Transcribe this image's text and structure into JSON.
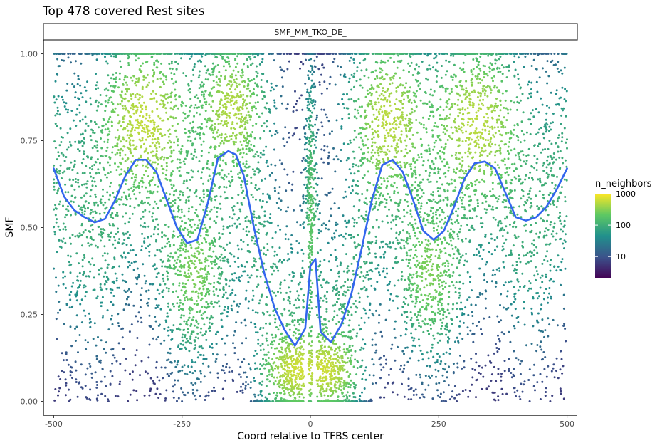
{
  "chart_data": {
    "type": "scatter",
    "title": "Top 478 covered Rest sites",
    "facet_label": "SMF_MM_TKO_DE_",
    "xlabel": "Coord relative to TFBS center",
    "ylabel": "SMF",
    "xlim": [
      -520,
      520
    ],
    "ylim": [
      -0.04,
      1.04
    ],
    "x_ticks": [
      -500,
      -250,
      0,
      250,
      500
    ],
    "x_tick_labels": [
      "-500",
      "-250",
      "0",
      "250",
      "500"
    ],
    "y_ticks": [
      0,
      0.25,
      0.5,
      0.75,
      1
    ],
    "y_tick_labels": [
      "0.00",
      "0.25",
      "0.50",
      "0.75",
      "1.00"
    ],
    "grid": false,
    "legend": {
      "title": "n_neighbors",
      "placement": "right",
      "scale": "log10",
      "range": [
        2,
        1000
      ],
      "labels": [
        "1000",
        "100",
        "10"
      ],
      "label_values": [
        1000,
        100,
        10
      ],
      "colors": [
        "#440154",
        "#3b528b",
        "#21908c",
        "#5dc863",
        "#fde725"
      ]
    },
    "smooth_line": {
      "color": "#3366ee",
      "x": [
        -500,
        -480,
        -460,
        -440,
        -420,
        -400,
        -380,
        -360,
        -340,
        -320,
        -300,
        -280,
        -260,
        -240,
        -220,
        -200,
        -180,
        -160,
        -145,
        -130,
        -110,
        -90,
        -70,
        -50,
        -30,
        -10,
        0,
        10,
        20,
        40,
        60,
        80,
        100,
        120,
        140,
        160,
        180,
        200,
        220,
        240,
        260,
        280,
        300,
        320,
        340,
        360,
        380,
        400,
        420,
        440,
        460,
        480,
        500
      ],
      "y": [
        0.67,
        0.59,
        0.55,
        0.53,
        0.515,
        0.525,
        0.58,
        0.65,
        0.695,
        0.695,
        0.66,
        0.58,
        0.5,
        0.455,
        0.465,
        0.57,
        0.7,
        0.72,
        0.71,
        0.65,
        0.5,
        0.37,
        0.27,
        0.205,
        0.16,
        0.21,
        0.39,
        0.41,
        0.2,
        0.17,
        0.22,
        0.31,
        0.44,
        0.58,
        0.68,
        0.695,
        0.66,
        0.58,
        0.49,
        0.465,
        0.49,
        0.56,
        0.64,
        0.685,
        0.69,
        0.67,
        0.6,
        0.53,
        0.52,
        0.53,
        0.56,
        0.61,
        0.67
      ]
    },
    "density_clusters": [
      {
        "x": -320,
        "y": 0.82,
        "sx": 55,
        "sy": 0.12,
        "weight": 0.13
      },
      {
        "x": -150,
        "y": 0.85,
        "sx": 40,
        "sy": 0.1,
        "weight": 0.11
      },
      {
        "x": 150,
        "y": 0.82,
        "sx": 45,
        "sy": 0.12,
        "weight": 0.12
      },
      {
        "x": 320,
        "y": 0.81,
        "sx": 55,
        "sy": 0.12,
        "weight": 0.12
      },
      {
        "x": -35,
        "y": 0.09,
        "sx": 35,
        "sy": 0.06,
        "weight": 0.12
      },
      {
        "x": 35,
        "y": 0.09,
        "sx": 35,
        "sy": 0.06,
        "weight": 0.12
      },
      {
        "x": -220,
        "y": 0.35,
        "sx": 40,
        "sy": 0.12,
        "weight": 0.06
      },
      {
        "x": 230,
        "y": 0.35,
        "sx": 40,
        "sy": 0.12,
        "weight": 0.06
      },
      {
        "x": 0,
        "y": 0.62,
        "sx": 6,
        "sy": 0.22,
        "weight": 0.04
      }
    ]
  }
}
